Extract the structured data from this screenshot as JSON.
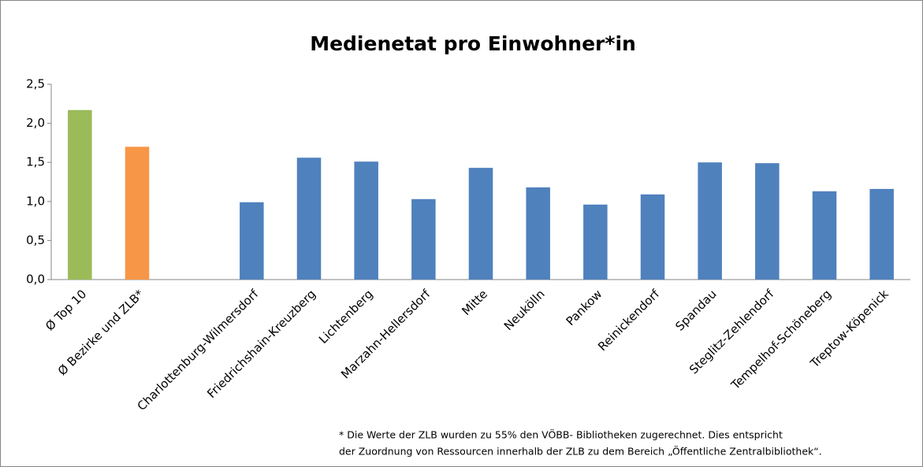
{
  "chart_data": {
    "type": "bar",
    "title": "Medienetat pro Einwohner*in",
    "categories": [
      "Ø Top 10",
      "Ø Bezirke und ZLB*",
      null,
      "Charlottenburg-Wilmersdorf",
      "Friedrichshain-Kreuzberg",
      "Lichtenberg",
      "Marzahn-Hellersdorf",
      "Mitte",
      "Neukölln",
      "Pankow",
      "Reinickendorf",
      "Spandau",
      "Steglitz-Zehlendorf",
      "Tempelhof-Schöneberg",
      "Treptow-Köpenick"
    ],
    "values": [
      2.17,
      1.7,
      null,
      0.99,
      1.56,
      1.51,
      1.03,
      1.43,
      1.18,
      0.96,
      1.09,
      1.5,
      1.49,
      1.13,
      1.16
    ],
    "colors": [
      "#9bbb59",
      "#f79646",
      null,
      "#4f81bd",
      "#4f81bd",
      "#4f81bd",
      "#4f81bd",
      "#4f81bd",
      "#4f81bd",
      "#4f81bd",
      "#4f81bd",
      "#4f81bd",
      "#4f81bd",
      "#4f81bd",
      "#4f81bd"
    ],
    "ylim": [
      0,
      2.5
    ],
    "yticks": [
      {
        "value": 0,
        "label": "0,0"
      },
      {
        "value": 0.5,
        "label": "0,5"
      },
      {
        "value": 1,
        "label": "1,0"
      },
      {
        "value": 1.5,
        "label": "1,5"
      },
      {
        "value": 2,
        "label": "2,0"
      },
      {
        "value": 2.5,
        "label": "2,5"
      }
    ],
    "grid": false,
    "annotations": [
      "* Die Werte der ZLB wurden zu 55% den VÖBB- Bibliotheken zugerechnet. Dies entspricht",
      "der Zuordnung von Ressourcen innerhalb der ZLB zu dem Bereich „Öffentliche Zentralbibliothek“."
    ]
  }
}
